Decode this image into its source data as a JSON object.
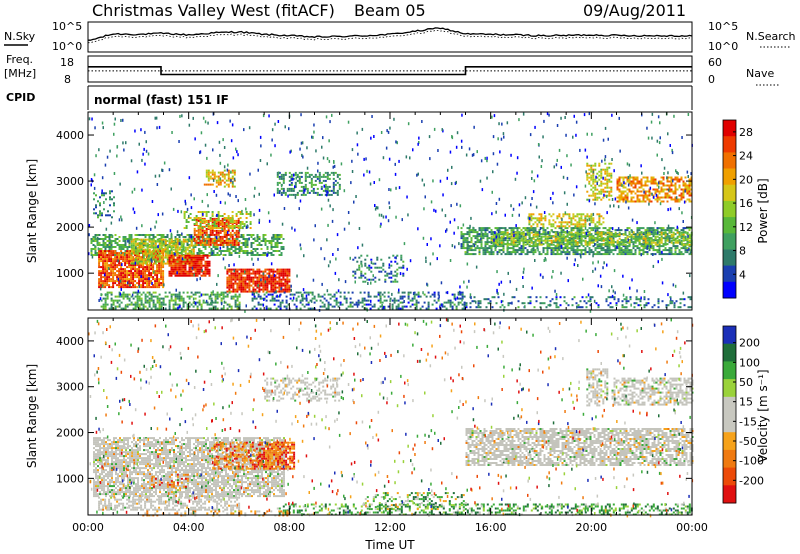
{
  "header": {
    "station": "Christmas Valley West (fitACF)",
    "beam": "Beam 05",
    "date": "09/Aug/2011"
  },
  "strips": {
    "nsky_label": "N.Sky",
    "nsearch_label": "N.Search",
    "noise_ticks": [
      "10^5",
      "10^0"
    ],
    "freq_label_1": "Freq.",
    "freq_label_2": "[MHz]",
    "freq_ticks": [
      "18",
      "8"
    ],
    "nave_label": "Nave",
    "nave_ticks": [
      "60",
      "0"
    ],
    "cpid_label": "CPID",
    "cpid_text": "normal (fast) 151 IF"
  },
  "colors": {
    "power": [
      "#0000ff",
      "#1a3fb0",
      "#2e7a6a",
      "#3fa060",
      "#58b83a",
      "#8fcc28",
      "#d6c618",
      "#f0a000",
      "#f07000",
      "#ee3a00",
      "#e00000"
    ],
    "velocity": [
      "#1b2fb8",
      "#1f6e3a",
      "#3aaa3a",
      "#9ad23a",
      "#c8c8c0",
      "#c8c8c0",
      "#f6a21a",
      "#f07a10",
      "#ec4a08",
      "#e01010"
    ],
    "ground": "#c4c4bc"
  },
  "chart_data": [
    {
      "type": "heatmap",
      "title": "Power",
      "ylabel": "Slant Range [km]",
      "yticks": [
        "1000",
        "2000",
        "3000",
        "4000"
      ],
      "ylim": [
        200,
        4500
      ],
      "xlim": [
        0,
        24
      ],
      "xticks": [
        "00:00",
        "04:00",
        "08:00",
        "12:00",
        "16:00",
        "20:00",
        "00:00"
      ],
      "colorbar_label": "Power [dB]",
      "colorbar_ticks": [
        "4",
        "8",
        "12",
        "16",
        "20",
        "24",
        "28"
      ],
      "colorbar_range": [
        0,
        30
      ],
      "regions": [
        {
          "t": [
            0.1,
            7.8
          ],
          "r": [
            1400,
            1850
          ],
          "v": 10,
          "density": 0.55
        },
        {
          "t": [
            0.4,
            3.0
          ],
          "r": [
            700,
            1500
          ],
          "v": 26,
          "density": 0.85
        },
        {
          "t": [
            1.7,
            4.2
          ],
          "r": [
            1200,
            1750
          ],
          "v": 17,
          "density": 0.7
        },
        {
          "t": [
            3.2,
            4.8
          ],
          "r": [
            950,
            1400
          ],
          "v": 28,
          "density": 0.85
        },
        {
          "t": [
            4.2,
            6.0
          ],
          "r": [
            1600,
            2200
          ],
          "v": 26,
          "density": 0.75
        },
        {
          "t": [
            5.5,
            8.0
          ],
          "r": [
            600,
            1100
          ],
          "v": 28,
          "density": 0.85
        },
        {
          "t": [
            3.8,
            6.5
          ],
          "r": [
            2000,
            2350
          ],
          "v": 16,
          "density": 0.45
        },
        {
          "t": [
            4.6,
            5.8
          ],
          "r": [
            2900,
            3250
          ],
          "v": 20,
          "density": 0.5
        },
        {
          "t": [
            0.5,
            6.0
          ],
          "r": [
            250,
            600
          ],
          "v": 10,
          "density": 0.5
        },
        {
          "t": [
            7.5,
            10.0
          ],
          "r": [
            2700,
            3200
          ],
          "v": 8,
          "density": 0.45
        },
        {
          "t": [
            6.5,
            15.0
          ],
          "r": [
            250,
            600
          ],
          "v": 6,
          "density": 0.35
        },
        {
          "t": [
            10.5,
            12.5
          ],
          "r": [
            800,
            1400
          ],
          "v": 6,
          "density": 0.3
        },
        {
          "t": [
            14.8,
            24.0
          ],
          "r": [
            1400,
            2000
          ],
          "v": 9,
          "density": 0.65
        },
        {
          "t": [
            16.0,
            24.0
          ],
          "r": [
            1600,
            1900
          ],
          "v": 15,
          "density": 0.55
        },
        {
          "t": [
            17.5,
            20.5
          ],
          "r": [
            2000,
            2300
          ],
          "v": 18,
          "density": 0.5
        },
        {
          "t": [
            19.8,
            20.8
          ],
          "r": [
            2600,
            3400
          ],
          "v": 18,
          "density": 0.5
        },
        {
          "t": [
            21.0,
            24.0
          ],
          "r": [
            2550,
            3100
          ],
          "v": 22,
          "density": 0.6
        },
        {
          "t": [
            15.0,
            24.0
          ],
          "r": [
            250,
            500
          ],
          "v": 6,
          "density": 0.25
        },
        {
          "t": [
            0.2,
            1.0
          ],
          "r": [
            2200,
            2800
          ],
          "v": 7,
          "density": 0.25
        }
      ]
    },
    {
      "type": "heatmap",
      "title": "Velocity",
      "ylabel": "Slant Range [km]",
      "yticks": [
        "1000",
        "2000",
        "3000",
        "4000"
      ],
      "ylim": [
        200,
        4500
      ],
      "xlim": [
        0,
        24
      ],
      "xticks": [
        "00:00",
        "04:00",
        "08:00",
        "12:00",
        "16:00",
        "20:00",
        "00:00"
      ],
      "xlabel": "Time UT",
      "colorbar_label": "Velocity [m s⁻¹]",
      "colorbar_ticks": [
        "200",
        "100",
        "50",
        "15",
        "-15",
        "-50",
        "-100",
        "-200"
      ],
      "regions": [
        {
          "t": [
            0.2,
            7.8
          ],
          "r": [
            600,
            1900
          ],
          "v": 0,
          "density": 0.75,
          "ground": true
        },
        {
          "t": [
            0.4,
            6.0
          ],
          "r": [
            300,
            600
          ],
          "v": 0,
          "density": 0.55,
          "ground": true
        },
        {
          "t": [
            5.0,
            6.8
          ],
          "r": [
            1200,
            1800
          ],
          "v": -70,
          "density": 0.55
        },
        {
          "t": [
            6.8,
            8.2
          ],
          "r": [
            1200,
            1800
          ],
          "v": -80,
          "density": 0.8
        },
        {
          "t": [
            2.5,
            4.0
          ],
          "r": [
            800,
            1100
          ],
          "v": -60,
          "density": 0.3
        },
        {
          "t": [
            7.0,
            10.0
          ],
          "r": [
            2700,
            3200
          ],
          "v": 0,
          "density": 0.4,
          "ground": true
        },
        {
          "t": [
            15.0,
            24.0
          ],
          "r": [
            1300,
            2100
          ],
          "v": 0,
          "density": 0.7,
          "ground": true
        },
        {
          "t": [
            19.8,
            20.6
          ],
          "r": [
            2600,
            3400
          ],
          "v": 0,
          "density": 0.5,
          "ground": true
        },
        {
          "t": [
            20.8,
            24.0
          ],
          "r": [
            2600,
            3200
          ],
          "v": 0,
          "density": 0.55,
          "ground": true
        },
        {
          "t": [
            7.5,
            24.0
          ],
          "r": [
            200,
            450
          ],
          "v": 60,
          "density": 0.4
        },
        {
          "t": [
            11.0,
            15.0
          ],
          "r": [
            350,
            700
          ],
          "v": 30,
          "density": 0.25
        },
        {
          "t": [
            2.0,
            8.0
          ],
          "r": [
            200,
            300
          ],
          "v": -40,
          "density": 0.3
        }
      ]
    }
  ],
  "time_series": {
    "nsky": [
      0.35,
      0.62,
      0.6,
      0.64,
      0.58,
      0.66,
      0.7,
      0.6,
      0.55,
      0.5,
      0.52,
      0.55,
      0.6,
      0.72,
      0.85,
      0.62,
      0.6,
      0.58,
      0.55,
      0.56,
      0.58,
      0.56,
      0.55,
      0.55,
      0.54
    ],
    "freq": [
      {
        "t": [
          0,
          2.9
        ],
        "v": 14
      },
      {
        "t": [
          2.9,
          15.0
        ],
        "v": 10.5
      },
      {
        "t": [
          15.0,
          24.0
        ],
        "v": 14
      }
    ],
    "nave": 25
  }
}
